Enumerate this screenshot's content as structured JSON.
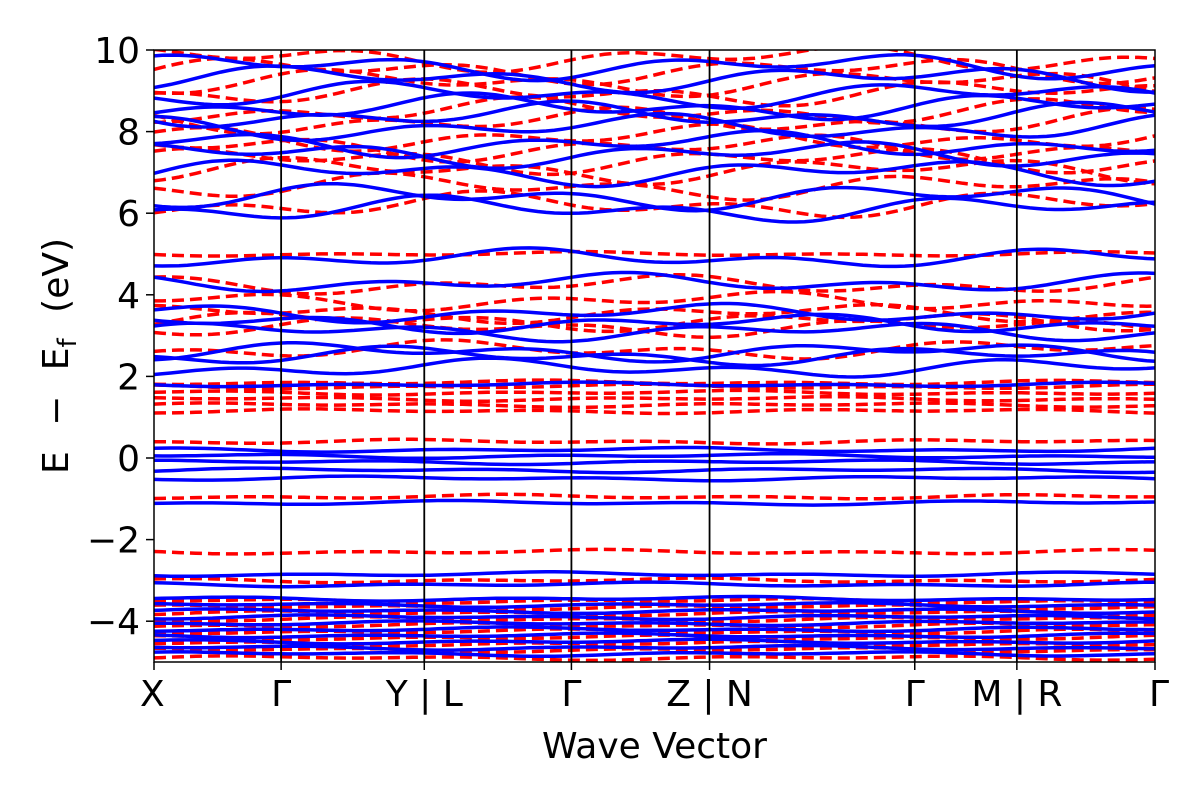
{
  "chart_data": {
    "type": "line",
    "xlabel": "Wave Vector",
    "ylabel": "E − E_f (eV)",
    "ylabel_parts": {
      "E": "E",
      "minus": "−",
      "Ef_main": "E",
      "Ef_sub": "f",
      "unit": "(eV)"
    },
    "ylim": [
      -5,
      10
    ],
    "yticks": [
      -4,
      -2,
      0,
      2,
      4,
      6,
      8,
      10
    ],
    "ytick_labels": [
      "−4",
      "−2",
      "0",
      "2",
      "4",
      "6",
      "8",
      "10"
    ],
    "xlim": [
      0,
      1
    ],
    "kpath_ticks": [
      {
        "x": 0.0,
        "label": "X"
      },
      {
        "x": 0.127,
        "label": "Γ"
      },
      {
        "x": 0.27,
        "label": "Y | L"
      },
      {
        "x": 0.417,
        "label": "Γ"
      },
      {
        "x": 0.555,
        "label": "Z | N"
      },
      {
        "x": 0.76,
        "label": "Γ"
      },
      {
        "x": 0.862,
        "label": "M | R"
      },
      {
        "x": 1.0,
        "label": "Γ"
      }
    ],
    "segment_boundaries": [
      0.127,
      0.27,
      0.417,
      0.555,
      0.76,
      0.862
    ],
    "grid": false,
    "series": [
      {
        "style": "dashed",
        "color": "#ff0000",
        "band_energies_at_gamma": [
          -4.9,
          -4.7,
          -4.55,
          -4.4,
          -4.25,
          -4.1,
          -3.95,
          -3.8,
          -3.65,
          -3.5,
          -3.0,
          -2.3,
          -0.95,
          0.4,
          1.15,
          1.3,
          1.45,
          1.6,
          1.75,
          1.85,
          2.65,
          3.2,
          3.35,
          3.55,
          3.85,
          4.25,
          5.0,
          6.2,
          6.65,
          7.05,
          7.3,
          7.6,
          7.85,
          8.25,
          8.5,
          8.95,
          9.2,
          9.5,
          9.8
        ]
      },
      {
        "style": "solid",
        "color": "#0000ff",
        "band_energies_at_gamma": [
          -4.8,
          -4.65,
          -4.5,
          -4.35,
          -4.2,
          -4.05,
          -3.9,
          -3.75,
          -3.6,
          -3.45,
          -3.1,
          -2.85,
          -1.1,
          -0.5,
          -0.3,
          -0.1,
          0.05,
          0.2,
          1.8,
          2.2,
          2.5,
          2.6,
          3.1,
          3.3,
          3.55,
          4.3,
          4.9,
          6.1,
          6.4,
          7.0,
          7.45,
          7.7,
          8.1,
          8.4,
          8.6,
          8.9,
          9.3,
          9.6
        ]
      }
    ]
  }
}
